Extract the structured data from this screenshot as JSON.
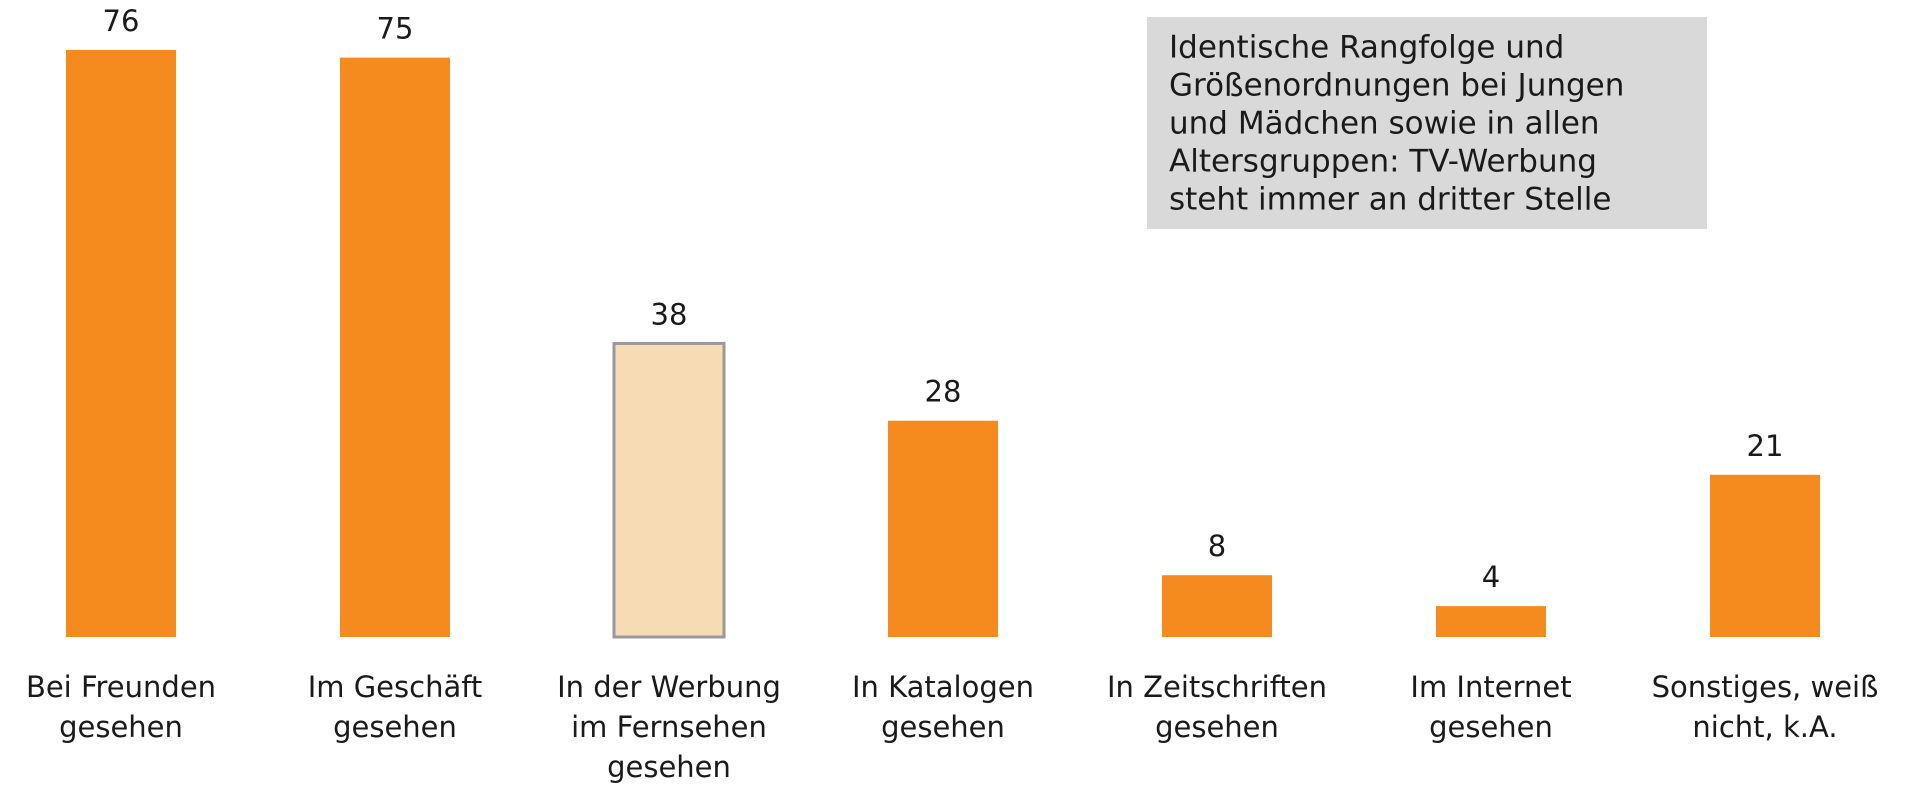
{
  "chart_data": {
    "type": "bar",
    "categories": [
      [
        "Bei Freunden",
        "gesehen"
      ],
      [
        "Im Geschäft",
        "gesehen"
      ],
      [
        "In der Werbung",
        "im Fernsehen",
        "gesehen"
      ],
      [
        "In Katalogen",
        "gesehen"
      ],
      [
        "In Zeitschriften",
        "gesehen"
      ],
      [
        "Im Internet",
        "gesehen"
      ],
      [
        "Sonstiges, weiß",
        "nicht, k.A."
      ]
    ],
    "values": [
      76,
      75,
      38,
      28,
      8,
      4,
      21
    ],
    "colors": [
      "#f58b1f",
      "#f58b1f",
      "#f7dbb5",
      "#f58b1f",
      "#f58b1f",
      "#f58b1f",
      "#f58b1f"
    ],
    "edgecolors": [
      null,
      null,
      "#999999",
      null,
      null,
      null,
      null
    ],
    "ylim": [
      0,
      80
    ],
    "annotation": [
      "Identische Rangfolge und",
      "Größenordnungen bei Jungen",
      "und Mädchen sowie in allen",
      "Altersgruppen: TV-Werbung",
      "steht immer an dritter Stelle"
    ],
    "annotation_color": "#d9d9d9"
  }
}
